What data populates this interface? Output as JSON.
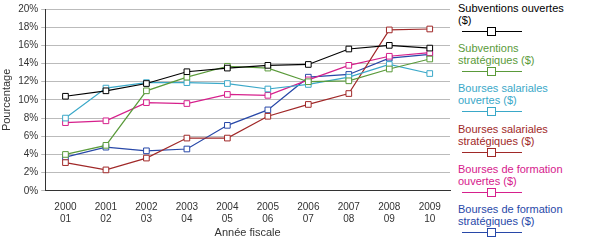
{
  "chart_data": {
    "type": "line",
    "x_label": "Année fiscale",
    "y_label": "Pourcentage",
    "categories": [
      "2000\n01",
      "2001\n02",
      "2002\n03",
      "2003\n04",
      "2004\n05",
      "2005\n06",
      "2006\n07",
      "2007\n08",
      "2008\n09",
      "2009\n10"
    ],
    "series": [
      {
        "name": "Subventions ouvertes ($)",
        "color": "#000000",
        "values": [
          10.4,
          11.0,
          11.8,
          13.1,
          13.5,
          13.8,
          13.9,
          15.6,
          16.0,
          15.7
        ]
      },
      {
        "name": "Subventions stratégiques ($)",
        "color": "#5a9a3a",
        "values": [
          4.0,
          5.0,
          11.0,
          12.5,
          13.7,
          13.5,
          12.0,
          12.1,
          13.4,
          14.5
        ]
      },
      {
        "name": "Bourses salariales ouvertes ($)",
        "color": "#3aa8c8",
        "values": [
          8.0,
          11.3,
          11.9,
          11.9,
          11.8,
          11.2,
          11.7,
          12.5,
          13.9,
          12.9
        ]
      },
      {
        "name": "Bourses salariales stratégiques ($)",
        "color": "#a02828",
        "values": [
          3.1,
          2.3,
          3.6,
          5.8,
          5.8,
          8.2,
          9.5,
          10.7,
          17.7,
          17.8
        ]
      },
      {
        "name": "Bourses de formation ouvertes ($)",
        "color": "#d6208c",
        "values": [
          7.5,
          7.7,
          9.7,
          9.6,
          10.6,
          10.5,
          12.2,
          13.8,
          14.8,
          15.2
        ]
      },
      {
        "name": "Bourses de formation stratégiques ($)",
        "color": "#2848a8",
        "values": [
          3.7,
          4.8,
          4.4,
          4.6,
          7.2,
          8.9,
          12.5,
          12.8,
          14.6,
          15.0
        ]
      }
    ],
    "ylim": [
      0,
      20
    ],
    "yticks": [
      {
        "value": 0,
        "label": "0%"
      },
      {
        "value": 2,
        "label": "2%"
      },
      {
        "value": 4,
        "label": "4%"
      },
      {
        "value": 6,
        "label": "6%"
      },
      {
        "value": 8,
        "label": "8%"
      },
      {
        "value": 10,
        "label": "10%"
      },
      {
        "value": 12,
        "label": "12%"
      },
      {
        "value": 14,
        "label": "14%"
      },
      {
        "value": 16,
        "label": "16%"
      },
      {
        "value": 18,
        "label": "18%"
      },
      {
        "value": 20,
        "label": "20%"
      }
    ],
    "grid": true,
    "legend": "right",
    "marker": "square"
  }
}
